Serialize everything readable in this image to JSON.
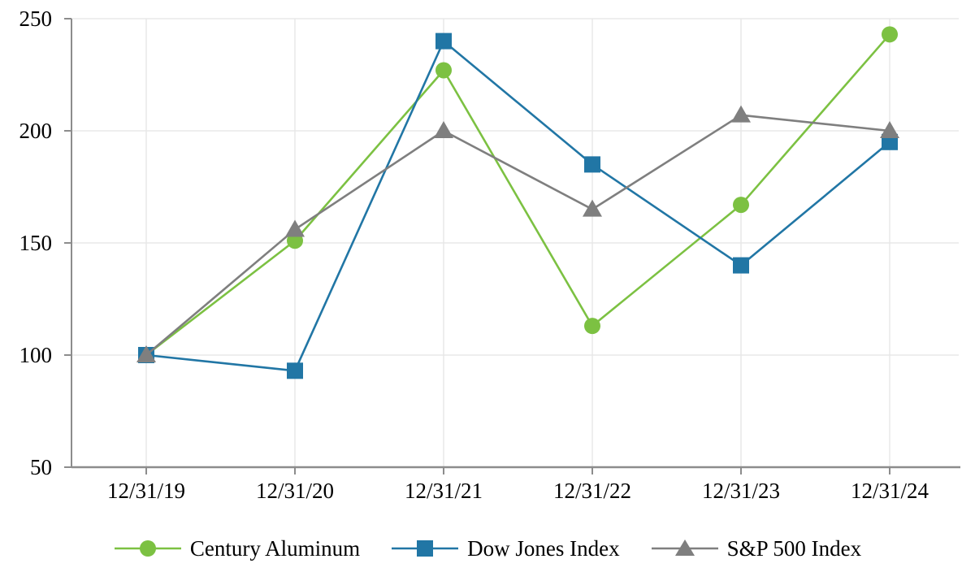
{
  "chart_data": {
    "type": "line",
    "title": "",
    "xlabel": "",
    "ylabel": "",
    "categories": [
      "12/31/19",
      "12/31/20",
      "12/31/21",
      "12/31/22",
      "12/31/23",
      "12/31/24"
    ],
    "series": [
      {
        "name": "Century Aluminum",
        "marker": "circle",
        "color": "#7CC142",
        "values": [
          100,
          151,
          227,
          113,
          167,
          243
        ]
      },
      {
        "name": "Dow Jones Index",
        "marker": "square",
        "color": "#2176A5",
        "values": [
          100,
          93,
          240,
          185,
          140,
          195
        ]
      },
      {
        "name": "S&P 500 Index",
        "marker": "triangle",
        "color": "#7F7F7F",
        "values": [
          100,
          156,
          200,
          165,
          207,
          200
        ]
      }
    ],
    "ylim": [
      50,
      250
    ],
    "yticks": [
      50,
      100,
      150,
      200,
      250
    ],
    "grid": true,
    "legend_position": "bottom"
  },
  "colors": {
    "background": "#FFFFFF",
    "axis": "#8C8C8C",
    "gridline": "#E8E8E8",
    "text": "#000000"
  }
}
